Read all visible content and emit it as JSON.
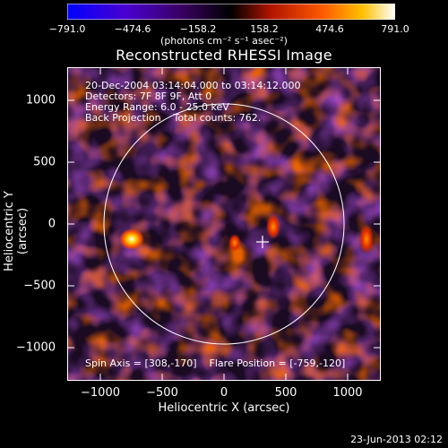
{
  "colorbar": {
    "ticks": [
      "−791.0",
      "−474.6",
      "−158.2",
      "158.2",
      "474.6",
      "791.0"
    ],
    "units": "(photons cm⁻² s⁻¹ asec⁻²)",
    "colors": [
      "#0000ff",
      "#5a00c8",
      "#2b003a",
      "#000000",
      "#c81a00",
      "#ff6a00",
      "#ffb000",
      "#ffffff"
    ]
  },
  "title": "Reconstructed RHESSI Image",
  "info": {
    "time": "20-Dec-2004 03:14:04.000 to 03:14:12.000",
    "detectors": "Detectors: 7F 8F 9F, Att 0",
    "energy": "Energy Range: 6.0 - 25.0 keV",
    "method": "Back Projection    Total counts: 762.",
    "spin": "Spin Axis = [308,-170]    Flare Position = [-759,-120]"
  },
  "axes": {
    "xlabel": "Heliocentric X (arcsec)",
    "ylabel": "Heliocentric Y (arcsec)",
    "xticks": [
      "−1000",
      "−500",
      "0",
      "500",
      "1000"
    ],
    "yticks": [
      "1000",
      "500",
      "0",
      "−500",
      "−1000"
    ],
    "xlim": [
      -1270,
      1270
    ],
    "ylim": [
      -1270,
      1270
    ]
  },
  "timestamp": "23-Jun-2013 02:12"
}
